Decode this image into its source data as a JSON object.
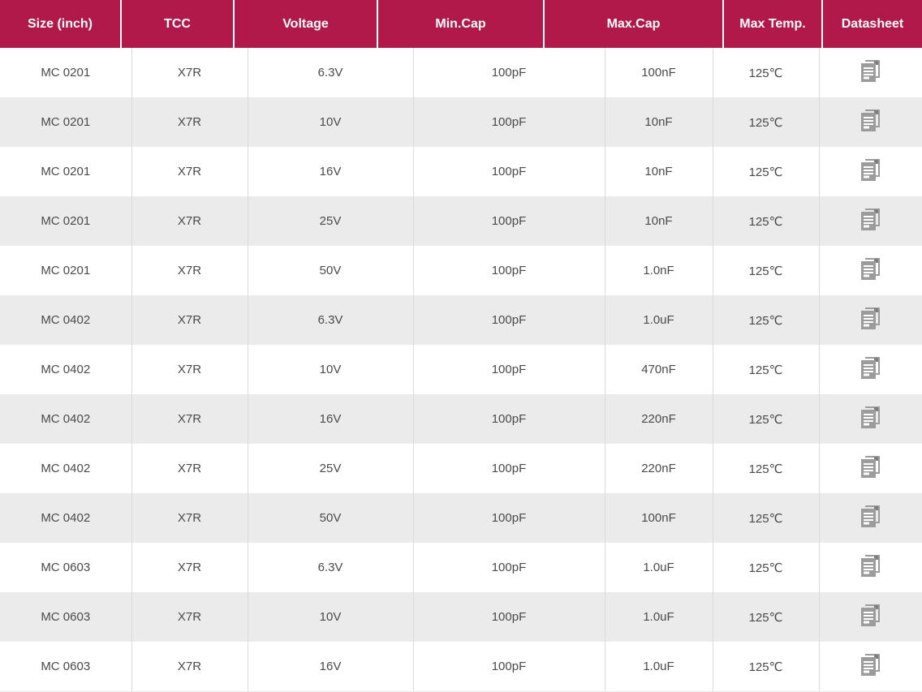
{
  "table": {
    "columns": [
      {
        "key": "size",
        "label": "Size (inch)"
      },
      {
        "key": "tcc",
        "label": "TCC"
      },
      {
        "key": "voltage",
        "label": "Voltage"
      },
      {
        "key": "min_cap",
        "label": "Min.Cap"
      },
      {
        "key": "max_cap",
        "label": "Max.Cap"
      },
      {
        "key": "max_temp",
        "label": "Max Temp."
      },
      {
        "key": "datasheet",
        "label": "Datasheet"
      }
    ],
    "rows": [
      [
        "MC 0201",
        "X7R",
        "6.3V",
        "100pF",
        "100nF",
        "125℃"
      ],
      [
        "MC 0201",
        "X7R",
        "10V",
        "100pF",
        "10nF",
        "125℃"
      ],
      [
        "MC 0201",
        "X7R",
        "16V",
        "100pF",
        "10nF",
        "125℃"
      ],
      [
        "MC 0201",
        "X7R",
        "25V",
        "100pF",
        "10nF",
        "125℃"
      ],
      [
        "MC 0201",
        "X7R",
        "50V",
        "100pF",
        "1.0nF",
        "125℃"
      ],
      [
        "MC 0402",
        "X7R",
        "6.3V",
        "100pF",
        "1.0uF",
        "125℃"
      ],
      [
        "MC 0402",
        "X7R",
        "10V",
        "100pF",
        "470nF",
        "125℃"
      ],
      [
        "MC 0402",
        "X7R",
        "16V",
        "100pF",
        "220nF",
        "125℃"
      ],
      [
        "MC 0402",
        "X7R",
        "25V",
        "100pF",
        "220nF",
        "125℃"
      ],
      [
        "MC 0402",
        "X7R",
        "50V",
        "100pF",
        "100nF",
        "125℃"
      ],
      [
        "MC 0603",
        "X7R",
        "6.3V",
        "100pF",
        "1.0uF",
        "125℃"
      ],
      [
        "MC 0603",
        "X7R",
        "10V",
        "100pF",
        "1.0uF",
        "125℃"
      ],
      [
        "MC 0603",
        "X7R",
        "16V",
        "100pF",
        "1.0uF",
        "125℃"
      ]
    ],
    "datasheet_icon": "document-copy-icon"
  },
  "colors": {
    "header_bg": "#B2194B",
    "header_text": "#FFFFFF",
    "row_bg": "#FFFFFF",
    "row_alt_bg": "#EBEBEB",
    "divider": "#DBDBDB",
    "body_text": "#4A4A4A",
    "icon_gray": "#9C9C9C",
    "icon_fold": "#7E7E7E"
  }
}
